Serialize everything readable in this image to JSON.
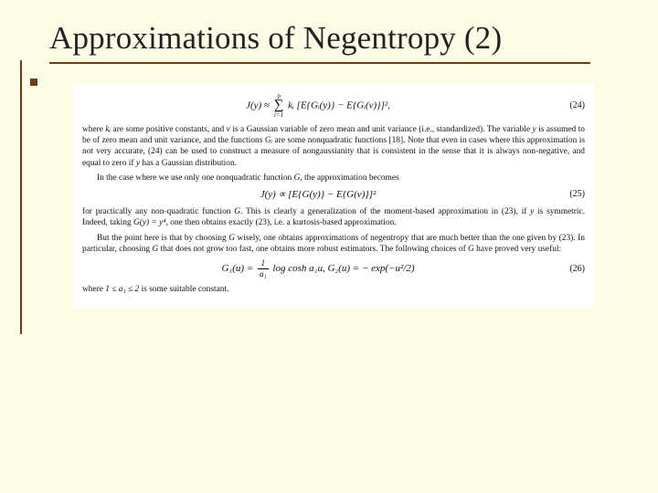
{
  "title": "Approximations of Negentropy (2)",
  "eq24": {
    "lhs": "J(y) ≈ ",
    "sum_top": "p",
    "sum_bot": "i=1",
    "body": " kᵢ [E{Gᵢ(y)} − E{Gᵢ(ν)}]²,",
    "num": "(24)"
  },
  "para1": {
    "a": "where ",
    "b": "kᵢ",
    "c": " are some positive constants, and ",
    "d": "ν",
    "e": " is a Gaussian variable of zero mean and unit variance (i.e., standardized). The variable ",
    "f": "y",
    "g": " is assumed to be of zero mean and unit variance, and the functions ",
    "h": "Gᵢ",
    "i": " are some nonquadratic functions [18]. Note that even in cases where this approximation is not very accurate, (24) can be used to construct a measure of nongaussianity that is consistent in the sense that it is always non-negative, and equal to zero if ",
    "j": "y",
    "k": " has a Gaussian distribution."
  },
  "para2": {
    "a": "In the case where we use only one nonquadratic function ",
    "b": "G",
    "c": ", the approximation becomes"
  },
  "eq25": {
    "text": "J(y) ∝ [E{G(y)} − E{G(ν)}]²",
    "num": "(25)"
  },
  "para3": {
    "a": "for practically any non-quadratic function ",
    "b": "G",
    "c": ". This is clearly a generalization of the moment-based approximation in (23), if ",
    "d": "y",
    "e": " is symmetric. Indeed, taking ",
    "f": "G(y) = y⁴",
    "g": ", one then obtains exactly (23), i.e. a kurtosis-based approximation."
  },
  "para4": {
    "a": "But the point here is that by choosing ",
    "b": "G",
    "c": " wisely, one obtains approximations of negentropy that are much better than the one given by (23). In particular, choosing ",
    "d": "G",
    "e": " that does not grow too fast, one obtains more robust estimators. The following choices of ",
    "f": "G",
    "g": " have proved very useful:"
  },
  "eq26": {
    "g1_lhs": "G₁(u) = ",
    "frac_n": "1",
    "frac_d": "a₁",
    "g1_rhs": " log cosh a₁u,    ",
    "g2": "G₂(u) = − exp(−u²/2)",
    "num": "(26)"
  },
  "para5": {
    "a": "where ",
    "b": "1 ≤ a₁ ≤ 2",
    "c": " is some suitable constant."
  }
}
